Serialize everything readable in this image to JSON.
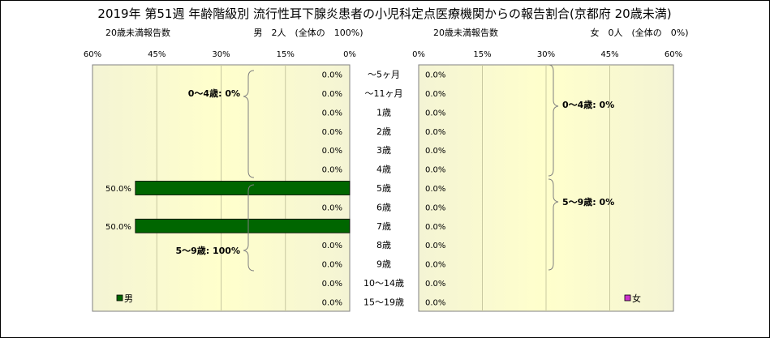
{
  "title": "2019年 第51週 年齢階級別 流行性耳下腺炎患者の小児科定点医療機関からの報告割合(京都府 20歳未満)",
  "colors": {
    "male_bar": "#006600",
    "female_marker": "#cc33cc",
    "panel_bg_center": "#ffffcc",
    "panel_bg_edge": "#f4f4d4"
  },
  "chart_data": [
    {
      "type": "bar",
      "orientation": "horizontal",
      "panel": "male",
      "left_header": "20歳未満報告数",
      "header": "男　2人　(全体の　100%)",
      "xlim": [
        60,
        0
      ],
      "x_ticks": [
        "60%",
        "45%",
        "30%",
        "15%",
        "0%"
      ],
      "legend": "男",
      "categories": [
        "～5ヶ月",
        "～11ヶ月",
        "1歳",
        "2歳",
        "3歳",
        "4歳",
        "5歳",
        "6歳",
        "7歳",
        "8歳",
        "9歳",
        "10～14歳",
        "15～19歳"
      ],
      "values": [
        0,
        0,
        0,
        0,
        0,
        0,
        50,
        0,
        50,
        0,
        0,
        0,
        0
      ],
      "data_labels": [
        "0.0%",
        "0.0%",
        "0.0%",
        "0.0%",
        "0.0%",
        "0.0%",
        "50.0%",
        "0.0%",
        "50.0%",
        "0.0%",
        "0.0%",
        "0.0%",
        "0.0%"
      ],
      "annotations": [
        "0～4歳: 0%",
        "5～9歳: 100%"
      ]
    },
    {
      "type": "bar",
      "orientation": "horizontal",
      "panel": "female",
      "left_header": "20歳未満報告数",
      "header": "女　0人　(全体の　0%)",
      "xlim": [
        0,
        60
      ],
      "x_ticks": [
        "0%",
        "15%",
        "30%",
        "45%",
        "60%"
      ],
      "legend": "女",
      "categories": [
        "～5ヶ月",
        "～11ヶ月",
        "1歳",
        "2歳",
        "3歳",
        "4歳",
        "5歳",
        "6歳",
        "7歳",
        "8歳",
        "9歳",
        "10～14歳",
        "15～19歳"
      ],
      "values": [
        0,
        0,
        0,
        0,
        0,
        0,
        0,
        0,
        0,
        0,
        0,
        0,
        0
      ],
      "data_labels": [
        "0.0%",
        "0.0%",
        "0.0%",
        "0.0%",
        "0.0%",
        "0.0%",
        "0.0%",
        "0.0%",
        "0.0%",
        "0.0%",
        "0.0%",
        "0.0%",
        "0.0%"
      ],
      "annotations": [
        "0～4歳: 0%",
        "5～9歳: 0%"
      ]
    }
  ]
}
